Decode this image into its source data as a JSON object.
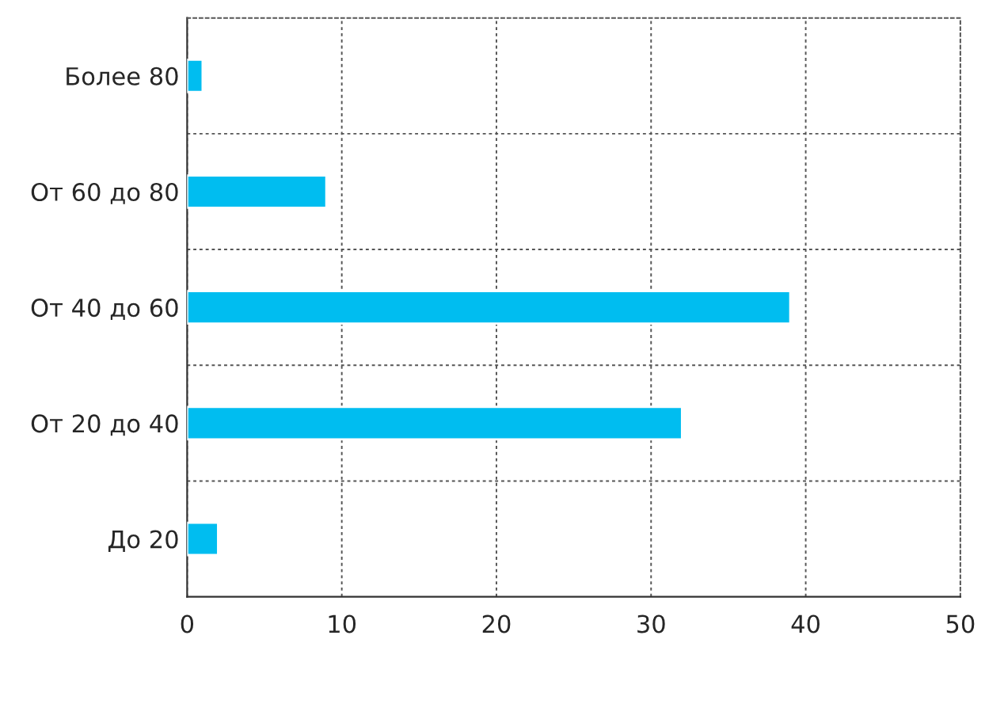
{
  "chart_data": {
    "type": "bar",
    "orientation": "horizontal",
    "categories": [
      "Более 80",
      "От 60 до 80",
      "От 40 до 60",
      "От 20 до 40",
      "До 20"
    ],
    "series": [
      {
        "color": "#00bdf0",
        "values": [
          1,
          9,
          39,
          32,
          2
        ]
      }
    ],
    "xlim": [
      0,
      50
    ],
    "xticks": [
      0,
      10,
      20,
      30,
      40,
      50
    ],
    "grid": true
  }
}
